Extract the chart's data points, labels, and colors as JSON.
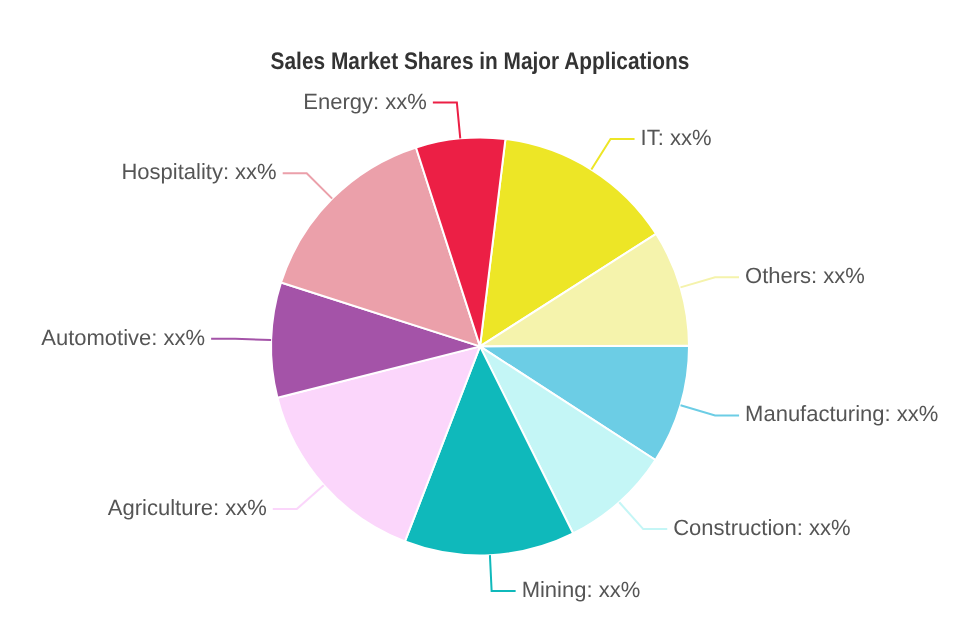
{
  "chart_data": {
    "type": "pie",
    "title": "Sales Market Shares in Major Applications",
    "categories": [
      "IT",
      "Others",
      "Manufacturing",
      "Construction",
      "Mining",
      "Agriculture",
      "Automotive",
      "Hospitality",
      "Energy"
    ],
    "values": [
      14.0,
      9.0,
      9.2,
      8.5,
      13.2,
      15.2,
      8.9,
      15.1,
      6.9
    ],
    "value_labels": [
      "xx%",
      "xx%",
      "xx%",
      "xx%",
      "xx%",
      "xx%",
      "xx%",
      "xx%",
      "xx%"
    ],
    "colors": [
      "#ede626",
      "#f5f3ac",
      "#6ccde5",
      "#c4f6f6",
      "#0fb9bb",
      "#fbd6fb",
      "#a453a8",
      "#eba0aa",
      "#ec1f45"
    ],
    "legend": false
  }
}
